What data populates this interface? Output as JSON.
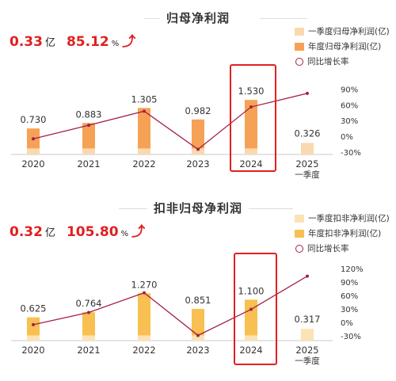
{
  "colors": {
    "annual_profit": "#f5a256",
    "annual_recurring": "#f7c050",
    "quarter_bar": "#fad9b0",
    "growth_line": "#a52048",
    "highlight": "#e0201f",
    "axis": "#c8c8c8"
  },
  "panels": [
    {
      "title": "归母净利润",
      "kpi": {
        "value": "0.33",
        "unit": "亿",
        "pct": "85.12",
        "pct_unit": "%",
        "arrow": "⤴"
      },
      "legend": [
        "一季度归母净利润(亿)",
        "年度归母净利润(亿)",
        "同比增长率"
      ]
    },
    {
      "title": "扣非归母净利润",
      "kpi": {
        "value": "0.32",
        "unit": "亿",
        "pct": "105.80",
        "pct_unit": "%",
        "arrow": "⤴"
      },
      "legend": [
        "一季度扣非净利润(亿)",
        "年度扣非净利润(亿)",
        "同比增长率"
      ]
    }
  ],
  "chart_data": [
    {
      "type": "bar",
      "title": "归母净利润",
      "categories": [
        "2020",
        "2021",
        "2022",
        "2023",
        "2024",
        "2025\n一季度"
      ],
      "series": [
        {
          "name": "一季度归母净利润(亿)",
          "values": [
            0.17,
            0.17,
            0.17,
            0.17,
            0.17,
            0.326
          ]
        },
        {
          "name": "年度归母净利润(亿)",
          "values": [
            0.73,
            0.883,
            1.305,
            0.982,
            1.53,
            null
          ]
        },
        {
          "name": "同比增长率",
          "type": "line",
          "axis": "right",
          "values": [
            -5,
            21,
            48,
            -25,
            56,
            82
          ]
        }
      ],
      "data_labels": [
        "0.730",
        "0.883",
        "1.305",
        "0.982",
        "1.530",
        "0.326"
      ],
      "right_axis_ticks": [
        "90%",
        "60%",
        "30%",
        "0%",
        "-30%"
      ],
      "right_axis_range": [
        -30,
        90
      ],
      "highlighted_category": "2024",
      "legend_position": "top-right"
    },
    {
      "type": "bar",
      "title": "扣非归母净利润",
      "categories": [
        "2020",
        "2021",
        "2022",
        "2023",
        "2024",
        "2025\n一季度"
      ],
      "series": [
        {
          "name": "一季度扣非净利润(亿)",
          "values": [
            0.14,
            0.14,
            0.14,
            0.14,
            0.14,
            0.317
          ]
        },
        {
          "name": "年度扣非净利润(亿)",
          "values": [
            0.625,
            0.764,
            1.27,
            0.851,
            1.1,
            null
          ]
        },
        {
          "name": "同比增长率",
          "type": "line",
          "axis": "right",
          "values": [
            -5,
            22,
            66,
            -29,
            29,
            103
          ]
        }
      ],
      "data_labels": [
        "0.625",
        "0.764",
        "1.270",
        "0.851",
        "1.100",
        "0.317"
      ],
      "right_axis_ticks": [
        "120%",
        "90%",
        "60%",
        "30%",
        "0%",
        "-30%"
      ],
      "right_axis_range": [
        -30,
        120
      ],
      "highlighted_category": "2024",
      "legend_position": "top-right"
    }
  ]
}
